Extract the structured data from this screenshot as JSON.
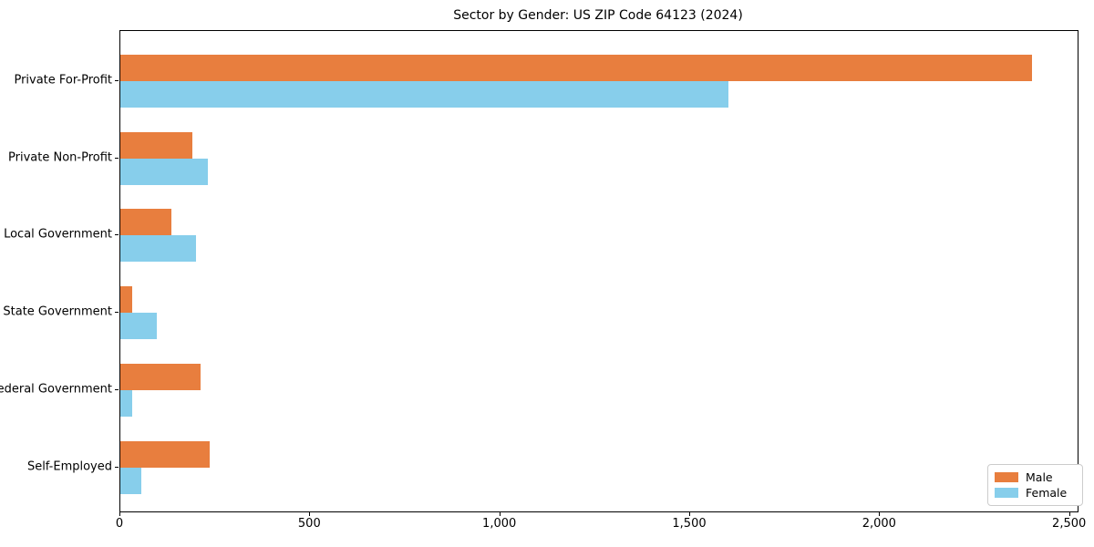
{
  "title": "Sector by Gender: US ZIP Code 64123 (2024)",
  "chart_data": {
    "type": "bar",
    "orientation": "horizontal",
    "title": "Sector by Gender: US ZIP Code 64123 (2024)",
    "categories": [
      "Private For-Profit",
      "Private Non-Profit",
      "Local Government",
      "State Government",
      "Federal Government",
      "Self-Employed"
    ],
    "series": [
      {
        "name": "Male",
        "color": "#E87E3E",
        "values": [
          2400,
          190,
          135,
          30,
          210,
          235
        ]
      },
      {
        "name": "Female",
        "color": "#87CEEB",
        "values": [
          1600,
          230,
          200,
          95,
          30,
          55
        ]
      }
    ],
    "xlabel": "",
    "ylabel": "",
    "xlim": [
      0,
      2520
    ],
    "xticks": [
      0,
      500,
      1000,
      1500,
      2000,
      2500
    ],
    "xtick_labels": [
      "0",
      "500",
      "1,000",
      "1,500",
      "2,000",
      "2,500"
    ],
    "grid": false,
    "legend_position": "lower right",
    "frame": true,
    "background_color": "#ffffff",
    "axis_color": "#000000"
  }
}
